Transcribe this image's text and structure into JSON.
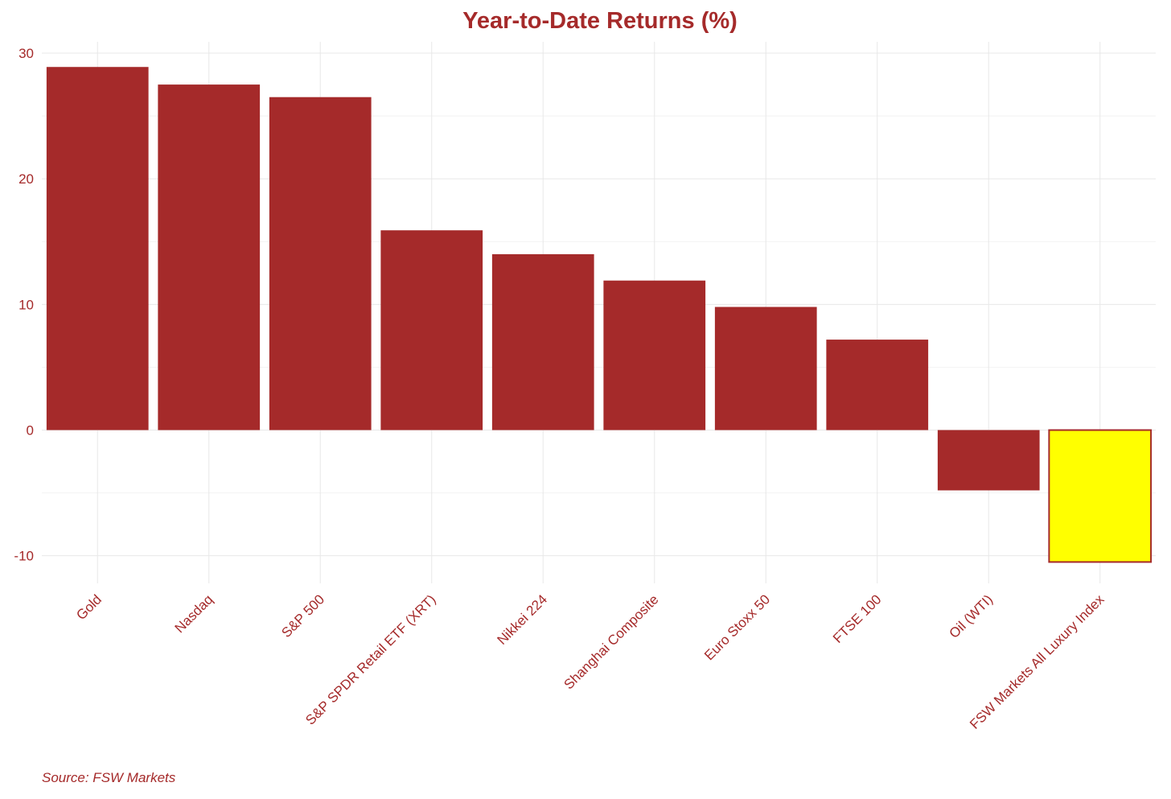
{
  "colors": {
    "bar": "#a52a2a",
    "highlight_fill": "#ffff00",
    "highlight_stroke": "#a52a2a",
    "text": "#a52a2a",
    "grid_major": "#e8e8e8",
    "grid_minor": "#f2f2f2",
    "background": "#ffffff"
  },
  "chart_data": {
    "type": "bar",
    "title": "Year-to-Date Returns (%)",
    "xlabel": "",
    "ylabel": "",
    "caption": "Source: FSW Markets",
    "categories": [
      "Gold",
      "Nasdaq",
      "S&P 500",
      "S&P SPDR Retail ETF (XRT)",
      "Nikkei 224",
      "Shanghai Composite",
      "Euro Stoxx 50",
      "FTSE 100",
      "Oil (WTI)",
      "FSW Markets All Luxury Index"
    ],
    "values": [
      28.9,
      27.5,
      26.5,
      15.9,
      14.0,
      11.9,
      9.8,
      7.2,
      -4.8,
      -10.5
    ],
    "highlight_category": "FSW Markets All Luxury Index",
    "ylim": [
      -12.2,
      30.9
    ],
    "yticks": [
      -10,
      0,
      10,
      20,
      30
    ],
    "grid": true,
    "legend": "none"
  }
}
